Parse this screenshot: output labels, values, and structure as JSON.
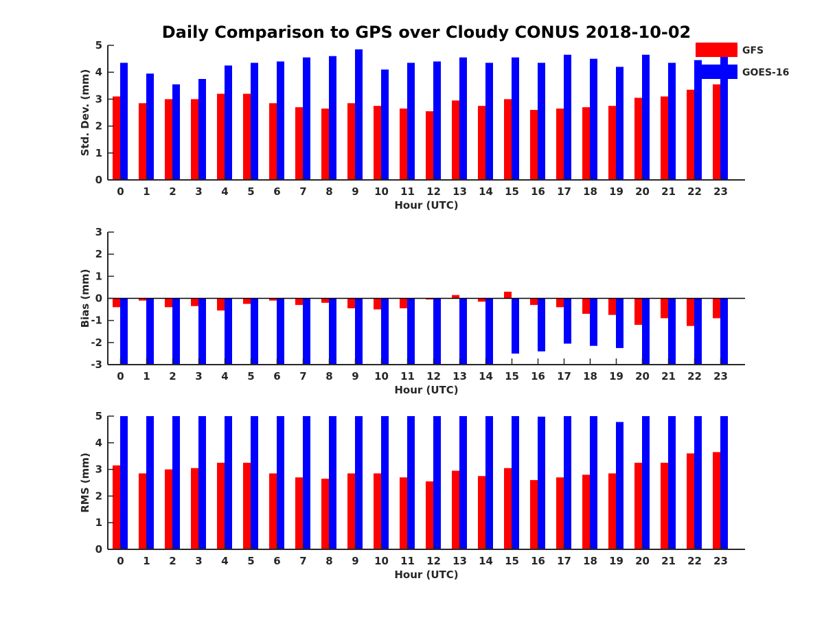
{
  "title": "Daily Comparison to GPS over Cloudy CONUS 2018-10-02",
  "legend": {
    "placement": "top-right",
    "entries": [
      {
        "label": "GFS",
        "color": "#ff0000"
      },
      {
        "label": "GOES-16",
        "color": "#0000ff"
      }
    ]
  },
  "chart_data": [
    {
      "type": "bar",
      "xlabel": "Hour (UTC)",
      "ylabel": "Std. Dev. (mm)",
      "ylim": [
        0,
        5
      ],
      "yticks": [
        0,
        1,
        2,
        3,
        4,
        5
      ],
      "categories": [
        "0",
        "1",
        "2",
        "3",
        "4",
        "5",
        "6",
        "7",
        "8",
        "9",
        "10",
        "11",
        "12",
        "13",
        "14",
        "15",
        "16",
        "17",
        "18",
        "19",
        "20",
        "21",
        "22",
        "23"
      ],
      "series": [
        {
          "name": "GFS",
          "color": "#ff0000",
          "values": [
            3.1,
            2.85,
            3.0,
            3.0,
            3.2,
            3.2,
            2.85,
            2.7,
            2.65,
            2.85,
            2.75,
            2.65,
            2.55,
            2.95,
            2.75,
            3.0,
            2.6,
            2.65,
            2.7,
            2.75,
            3.05,
            3.1,
            3.35,
            3.55
          ]
        },
        {
          "name": "GOES-16",
          "color": "#0000ff",
          "values": [
            4.35,
            3.95,
            3.55,
            3.75,
            4.25,
            4.35,
            4.4,
            4.55,
            4.6,
            4.85,
            4.1,
            4.35,
            4.4,
            4.55,
            4.35,
            4.55,
            4.35,
            4.65,
            4.5,
            4.2,
            4.65,
            4.35,
            4.45,
            4.6
          ]
        }
      ]
    },
    {
      "type": "bar",
      "xlabel": "Hour (UTC)",
      "ylabel": "Bias (mm)",
      "ylim": [
        -3,
        3
      ],
      "yticks": [
        -3,
        -2,
        -1,
        0,
        1,
        2,
        3
      ],
      "categories": [
        "0",
        "1",
        "2",
        "3",
        "4",
        "5",
        "6",
        "7",
        "8",
        "9",
        "10",
        "11",
        "12",
        "13",
        "14",
        "15",
        "16",
        "17",
        "18",
        "19",
        "20",
        "21",
        "22",
        "23"
      ],
      "series": [
        {
          "name": "GFS",
          "color": "#ff0000",
          "values": [
            -0.4,
            -0.1,
            -0.4,
            -0.35,
            -0.55,
            -0.25,
            -0.1,
            -0.3,
            -0.2,
            -0.45,
            -0.5,
            -0.45,
            -0.05,
            0.15,
            -0.15,
            0.3,
            -0.3,
            -0.4,
            -0.7,
            -0.75,
            -1.2,
            -0.9,
            -1.25,
            -0.9
          ]
        },
        {
          "name": "GOES-16",
          "color": "#0000ff",
          "values": [
            -3.0,
            -3.0,
            -3.0,
            -3.0,
            -3.0,
            -3.0,
            -3.0,
            -3.0,
            -3.0,
            -3.0,
            -3.0,
            -3.0,
            -3.0,
            -3.0,
            -3.0,
            -2.5,
            -2.4,
            -2.05,
            -2.15,
            -2.25,
            -3.0,
            -3.0,
            -3.0,
            -3.0
          ]
        }
      ]
    },
    {
      "type": "bar",
      "xlabel": "Hour (UTC)",
      "ylabel": "RMS (mm)",
      "ylim": [
        0,
        5
      ],
      "yticks": [
        0,
        1,
        2,
        3,
        4,
        5
      ],
      "categories": [
        "0",
        "1",
        "2",
        "3",
        "4",
        "5",
        "6",
        "7",
        "8",
        "9",
        "10",
        "11",
        "12",
        "13",
        "14",
        "15",
        "16",
        "17",
        "18",
        "19",
        "20",
        "21",
        "22",
        "23"
      ],
      "series": [
        {
          "name": "GFS",
          "color": "#ff0000",
          "values": [
            3.15,
            2.85,
            3.0,
            3.05,
            3.25,
            3.25,
            2.85,
            2.7,
            2.65,
            2.85,
            2.85,
            2.7,
            2.55,
            2.95,
            2.75,
            3.05,
            2.6,
            2.7,
            2.8,
            2.85,
            3.25,
            3.25,
            3.6,
            3.65
          ]
        },
        {
          "name": "GOES-16",
          "color": "#0000ff",
          "values": [
            5.0,
            5.0,
            5.0,
            5.0,
            5.0,
            5.0,
            5.0,
            5.0,
            5.0,
            5.0,
            5.0,
            5.0,
            5.0,
            5.0,
            5.0,
            5.0,
            4.98,
            5.0,
            5.0,
            4.78,
            5.0,
            5.0,
            5.0,
            5.0
          ]
        }
      ]
    }
  ]
}
